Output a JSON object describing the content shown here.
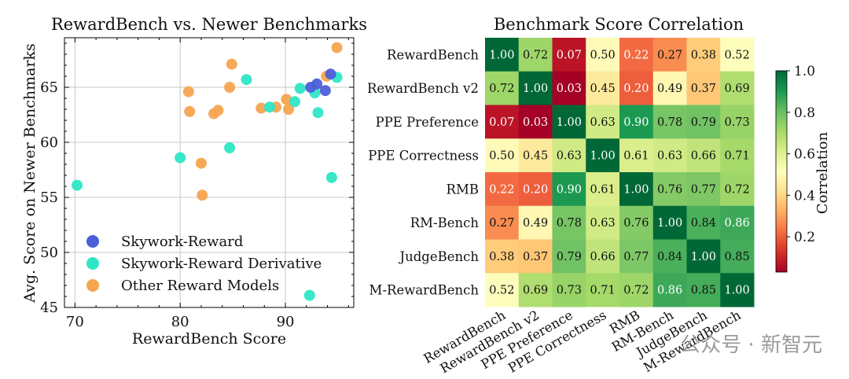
{
  "watermark": "公众号 · 新智元",
  "chart_data": [
    {
      "type": "scatter",
      "title": "RewardBench vs. Newer Benchmarks",
      "xlabel": "RewardBench Score",
      "ylabel": "Avg. Score on Newer Benchmarks",
      "xlim": [
        69,
        96.5
      ],
      "ylim": [
        45,
        69.5
      ],
      "xticks": [
        70,
        80,
        90
      ],
      "yticks": [
        45,
        50,
        55,
        60,
        65
      ],
      "grid": true,
      "legend_position": "lower-left",
      "series": [
        {
          "name": "Skywork-Reward",
          "color": "#4c5fd9",
          "points": [
            [
              92.4,
              65.0
            ],
            [
              93.0,
              65.3
            ],
            [
              93.8,
              64.7
            ],
            [
              94.3,
              66.2
            ]
          ]
        },
        {
          "name": "Skywork-Reward Derivative",
          "color": "#2ee6c6",
          "points": [
            [
              70.2,
              56.1
            ],
            [
              80.0,
              58.6
            ],
            [
              84.7,
              59.5
            ],
            [
              86.3,
              65.7
            ],
            [
              88.5,
              63.2
            ],
            [
              90.9,
              63.7
            ],
            [
              91.4,
              64.9
            ],
            [
              92.8,
              64.5
            ],
            [
              93.1,
              62.7
            ],
            [
              94.4,
              56.8
            ],
            [
              94.9,
              65.9
            ],
            [
              92.3,
              46.1
            ]
          ]
        },
        {
          "name": "Other Reward Models",
          "color": "#f5a54f",
          "points": [
            [
              80.8,
              64.6
            ],
            [
              80.9,
              62.8
            ],
            [
              82.0,
              58.1
            ],
            [
              82.1,
              55.2
            ],
            [
              83.2,
              62.6
            ],
            [
              83.6,
              62.9
            ],
            [
              84.7,
              65.0
            ],
            [
              84.9,
              67.1
            ],
            [
              87.7,
              63.1
            ],
            [
              89.1,
              63.2
            ],
            [
              90.1,
              63.9
            ],
            [
              90.3,
              63.0
            ],
            [
              93.9,
              66.0
            ],
            [
              94.9,
              68.6
            ]
          ]
        }
      ]
    },
    {
      "type": "heatmap",
      "title": "Benchmark Score Correlation",
      "labels": [
        "RewardBench",
        "RewardBench v2",
        "PPE Preference",
        "PPE Correctness",
        "RMB",
        "RM-Bench",
        "JudgeBench",
        "M-RewardBench"
      ],
      "values": [
        [
          1.0,
          0.72,
          0.07,
          0.5,
          0.22,
          0.27,
          0.38,
          0.52
        ],
        [
          0.72,
          1.0,
          0.03,
          0.45,
          0.2,
          0.49,
          0.37,
          0.69
        ],
        [
          0.07,
          0.03,
          1.0,
          0.63,
          0.9,
          0.78,
          0.79,
          0.73
        ],
        [
          0.5,
          0.45,
          0.63,
          1.0,
          0.61,
          0.63,
          0.66,
          0.71
        ],
        [
          0.22,
          0.2,
          0.9,
          0.61,
          1.0,
          0.76,
          0.77,
          0.72
        ],
        [
          0.27,
          0.49,
          0.78,
          0.63,
          0.76,
          1.0,
          0.84,
          0.86
        ],
        [
          0.38,
          0.37,
          0.79,
          0.66,
          0.77,
          0.84,
          1.0,
          0.85
        ],
        [
          0.52,
          0.69,
          0.73,
          0.71,
          0.72,
          0.86,
          0.85,
          1.0
        ]
      ],
      "colormap": "RdYlGn",
      "colorbar": {
        "label": "Correlation",
        "range": [
          0.03,
          1.0
        ],
        "ticks": [
          "0.2",
          "0.4",
          "0.6",
          "0.8",
          "1.0"
        ]
      }
    }
  ]
}
